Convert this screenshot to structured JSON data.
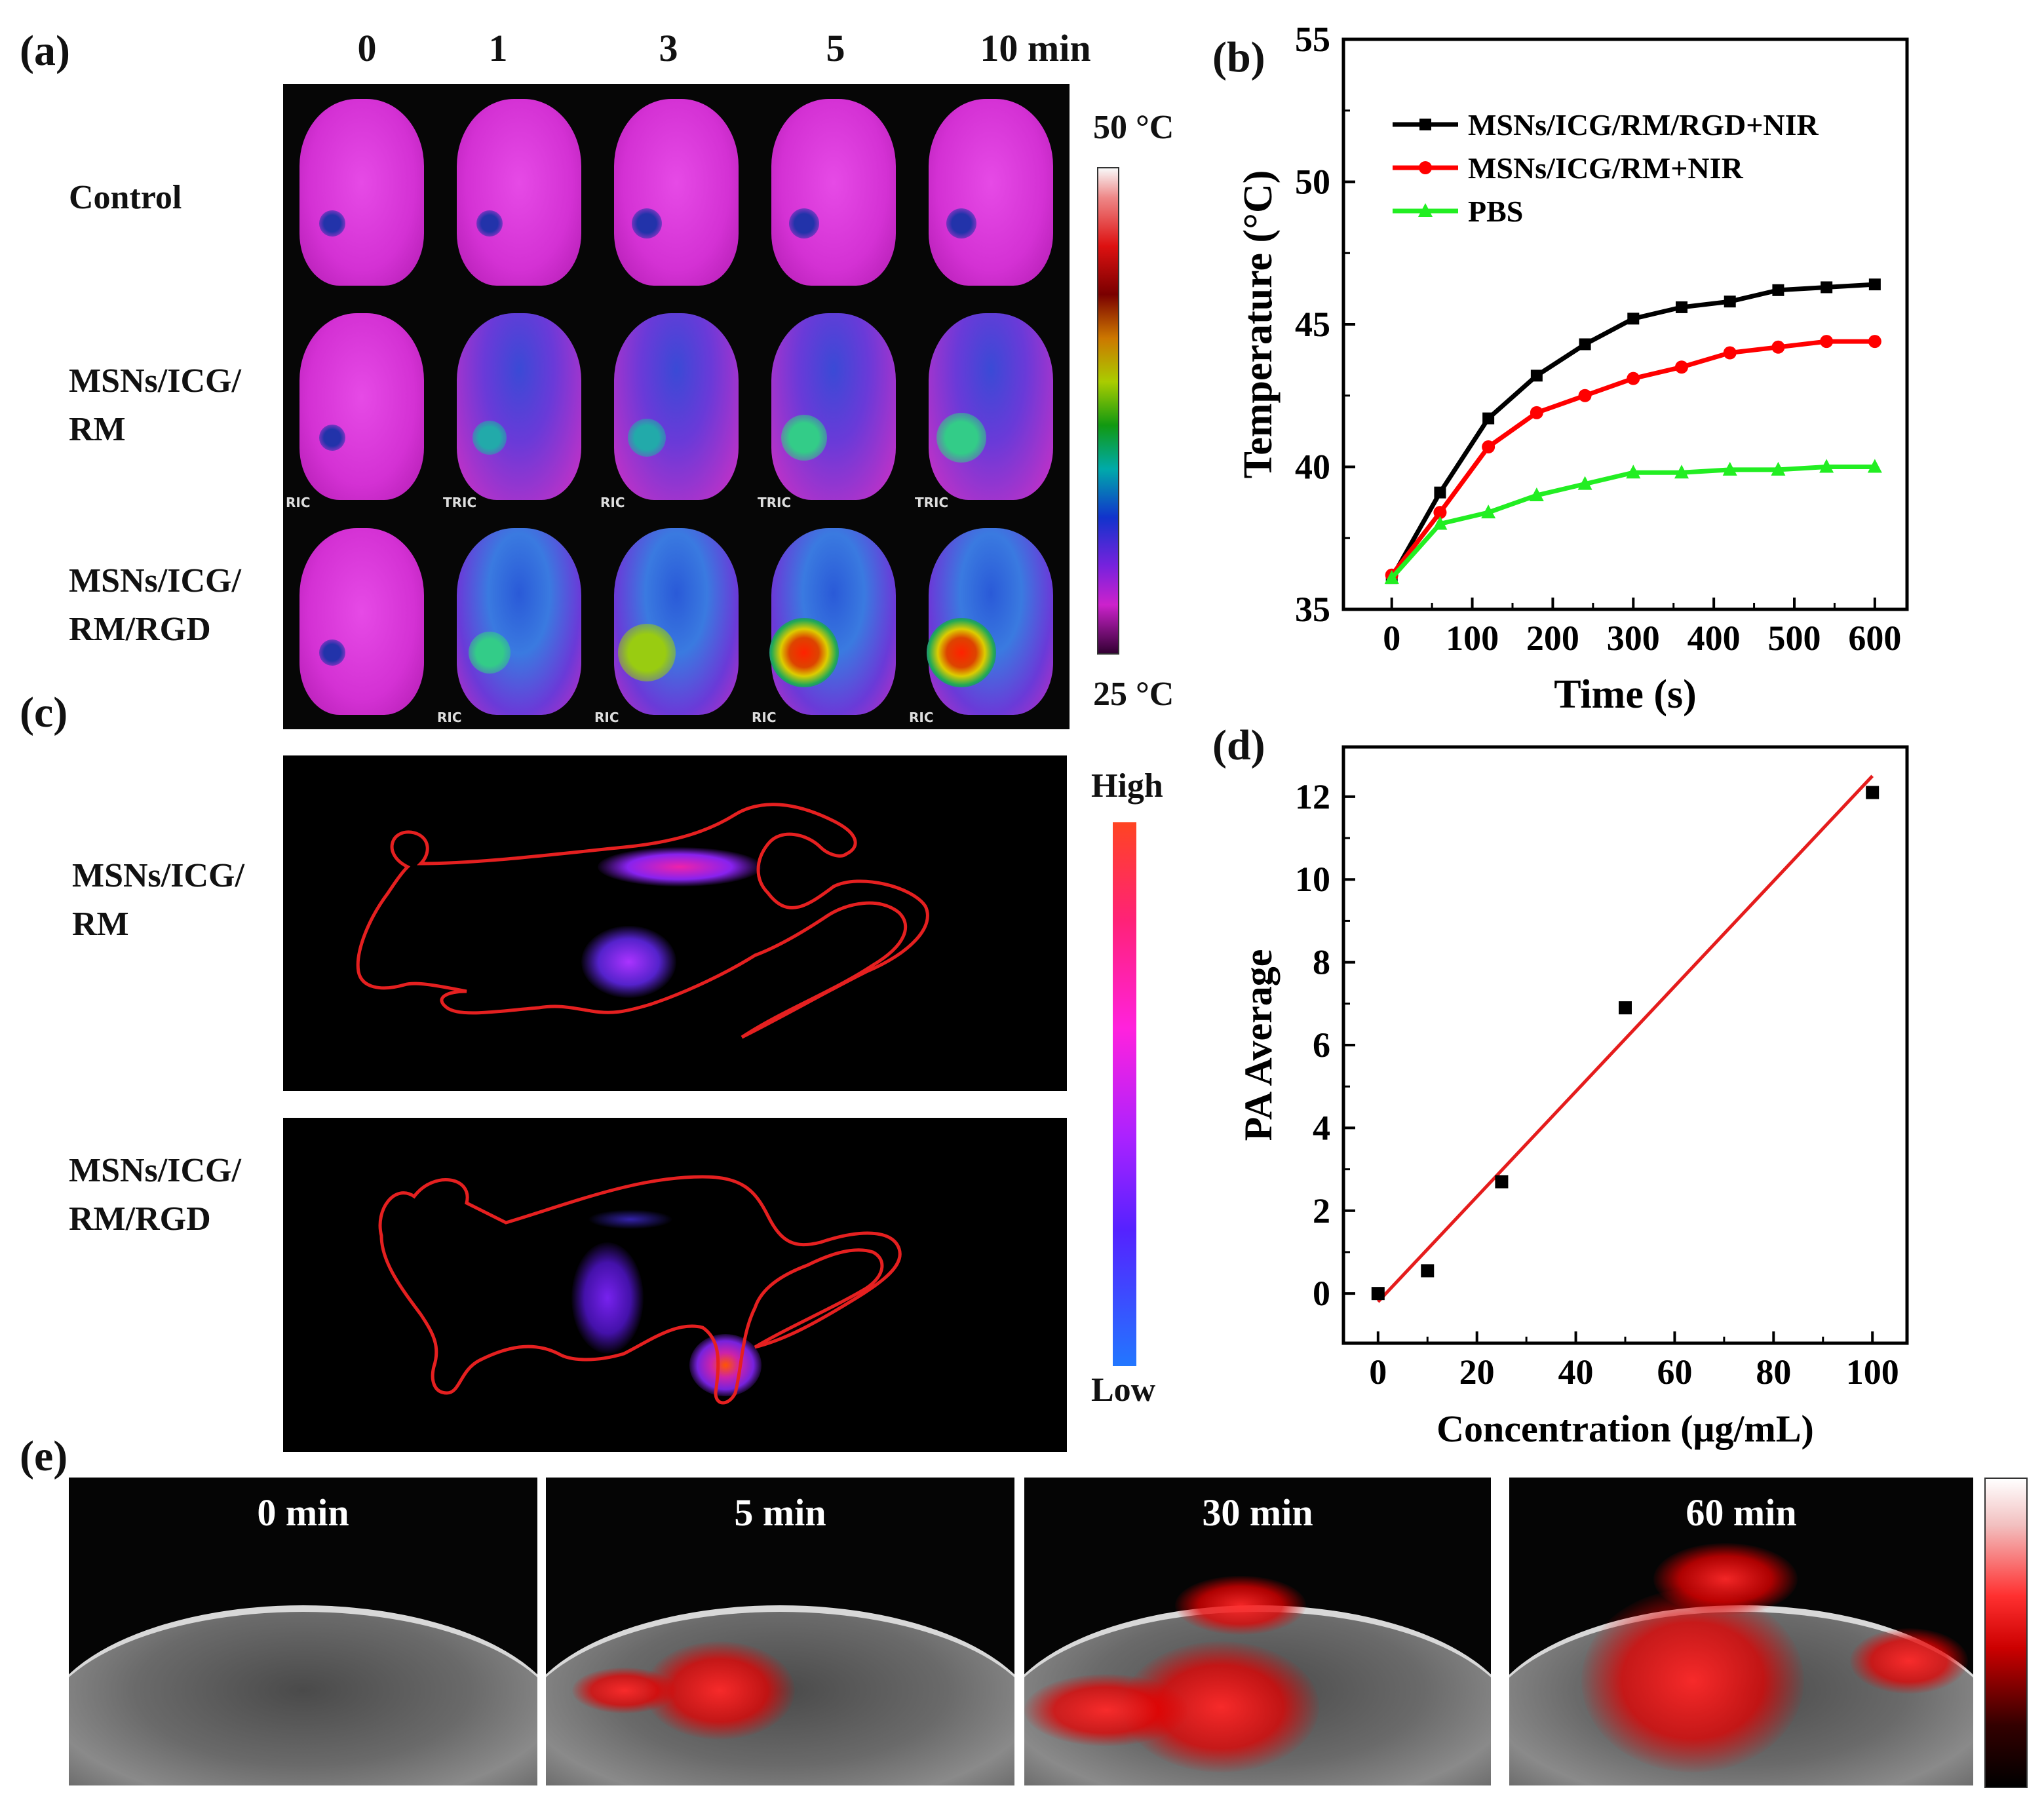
{
  "panels": {
    "a": "(a)",
    "b": "(b)",
    "c": "(c)",
    "d": "(d)",
    "e": "(e)"
  },
  "panel_a": {
    "time_labels": [
      "0",
      "1",
      "3",
      "5",
      "10 min"
    ],
    "rows": [
      {
        "label_lines": [
          "Control"
        ],
        "tumor_temps_c": [
          35,
          35,
          36,
          36,
          36
        ]
      },
      {
        "label_lines": [
          "MSNs/ICG/",
          "RM"
        ],
        "tumor_temps_c": [
          35,
          37,
          38,
          40,
          41
        ]
      },
      {
        "label_lines": [
          "MSNs/ICG/",
          "RM/RGD"
        ],
        "tumor_temps_c": [
          35,
          39,
          43,
          46,
          46
        ]
      }
    ],
    "colorbar_max": "50 °C",
    "colorbar_min": "25 °C",
    "watermarks": [
      "RIC",
      "TRIC",
      "RIC",
      "TRIC",
      "TRIC",
      "RIC",
      "RIC",
      "RIC",
      "RIC"
    ]
  },
  "panel_c": {
    "rows": [
      {
        "label_lines": [
          "MSNs/ICG/",
          "RM"
        ]
      },
      {
        "label_lines": [
          "MSNs/ICG/",
          "RM/RGD"
        ]
      }
    ],
    "colorbar_high": "High",
    "colorbar_low": "Low"
  },
  "panel_e": {
    "frames": [
      "0 min",
      "5 min",
      "30 min",
      "60 min"
    ]
  },
  "colors": {
    "black_series": "#000000",
    "red_series": "#ff0000",
    "green_series": "#22ee22",
    "fit_line": "#e51c1c"
  },
  "chart_data": [
    {
      "id": "b",
      "type": "line",
      "title": "",
      "xlabel": "Time (s)",
      "ylabel": "Temperature (°C)",
      "xlim": [
        -60,
        640
      ],
      "ylim": [
        35,
        55
      ],
      "xticks": [
        0,
        100,
        200,
        300,
        400,
        500,
        600
      ],
      "yticks": [
        35,
        40,
        45,
        50,
        55
      ],
      "x": [
        0,
        60,
        120,
        180,
        240,
        300,
        360,
        420,
        480,
        540,
        600
      ],
      "legend_position": "top-left",
      "series": [
        {
          "name": "MSNs/ICG/RM/RGD+NIR",
          "color": "#000000",
          "marker": "square",
          "values": [
            36.1,
            39.1,
            41.7,
            43.2,
            44.3,
            45.2,
            45.6,
            45.8,
            46.2,
            46.3,
            46.4
          ]
        },
        {
          "name": "MSNs/ICG/RM+NIR",
          "color": "#ff0000",
          "marker": "circle",
          "values": [
            36.2,
            38.4,
            40.7,
            41.9,
            42.5,
            43.1,
            43.5,
            44.0,
            44.2,
            44.4,
            44.4
          ]
        },
        {
          "name": "PBS",
          "color": "#22ee22",
          "marker": "triangle",
          "values": [
            36.1,
            38.0,
            38.4,
            39.0,
            39.4,
            39.8,
            39.8,
            39.9,
            39.9,
            40.0,
            40.0
          ]
        }
      ]
    },
    {
      "id": "d",
      "type": "scatter",
      "title": "",
      "xlabel": "Concentration (μg/mL)",
      "ylabel": "PA Average",
      "xlim": [
        -7,
        107
      ],
      "ylim": [
        -1.2,
        13.2
      ],
      "xticks": [
        0,
        20,
        40,
        60,
        80,
        100
      ],
      "yticks": [
        0,
        2,
        4,
        6,
        8,
        10,
        12
      ],
      "points": [
        {
          "x": 0,
          "y": 0.0
        },
        {
          "x": 10,
          "y": 0.55
        },
        {
          "x": 25,
          "y": 2.7
        },
        {
          "x": 50,
          "y": 6.9
        },
        {
          "x": 100,
          "y": 12.1
        }
      ],
      "fit_line": {
        "x": [
          0,
          100
        ],
        "y": [
          -0.2,
          12.5
        ]
      }
    }
  ]
}
